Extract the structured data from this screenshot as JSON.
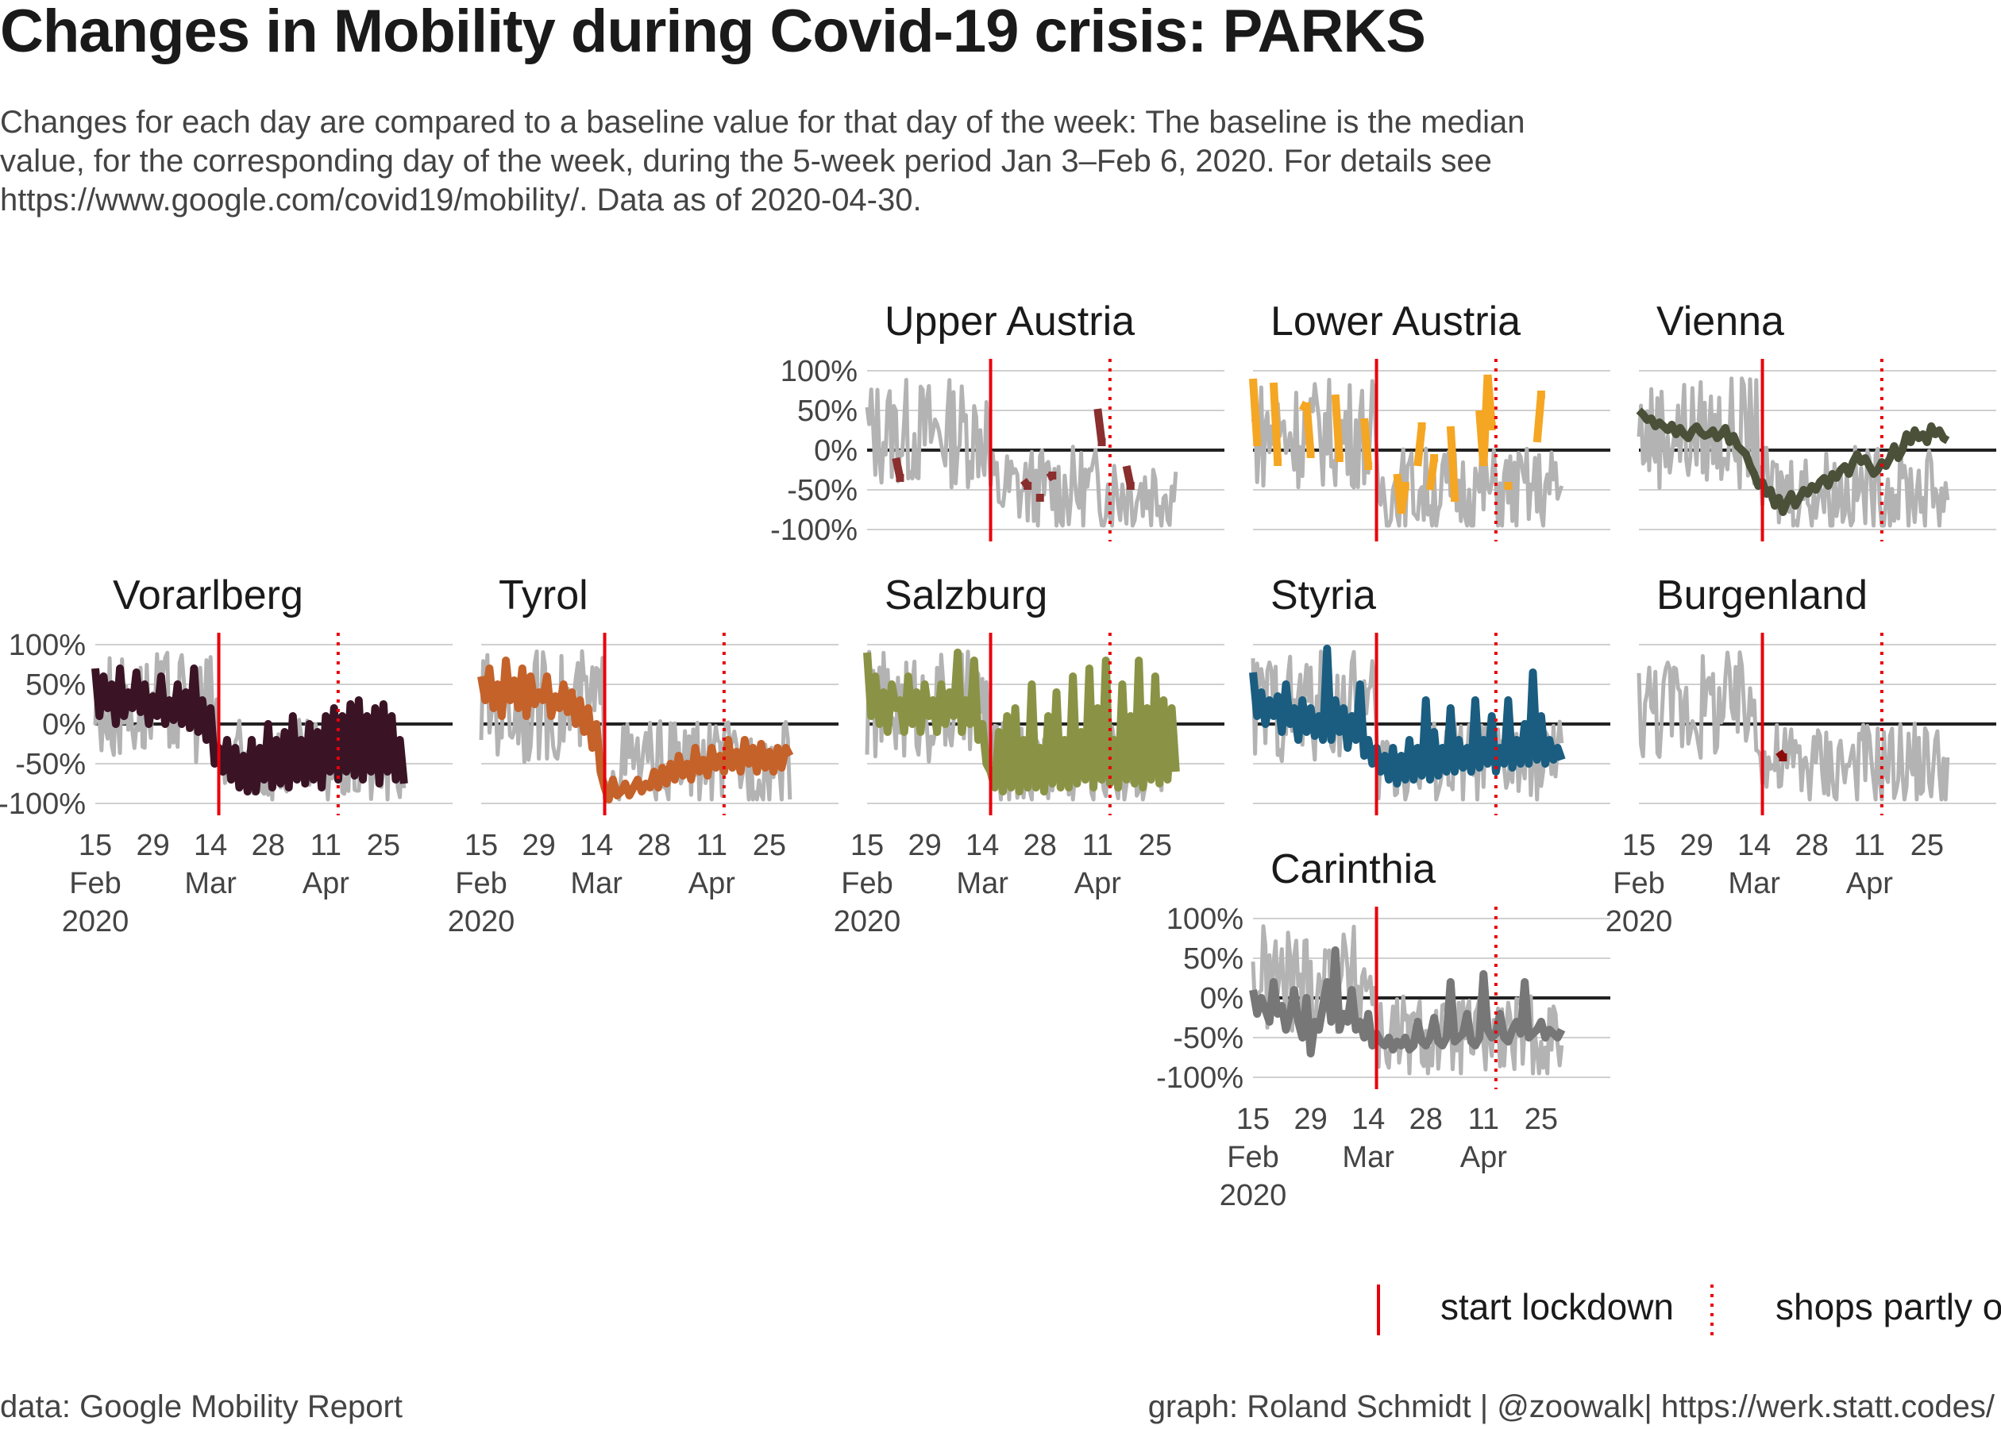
{
  "header": {
    "title": "Changes in Mobility during Covid-19 crisis: PARKS",
    "subtitle": "Changes for each day are compared to a baseline value for that day of the week: The baseline is the median value, for the corresponding day of the week, during the 5-week period Jan 3–Feb 6, 2020. For details see https://www.google.com/covid19/mobility/. Data as of 2020-04-30."
  },
  "legend": {
    "lockdown_label": "start lockdown",
    "shops_label": "shops partly open",
    "lockdown_color": "#e8000b"
  },
  "caption": {
    "left": "data: Google Mobility Report",
    "right": "graph: Roland Schmidt | @zoowalk| https://werk.statt.codes/"
  },
  "chart_data": {
    "type": "line",
    "y_ticks": [
      "100%",
      "50%",
      "0%",
      "-50%",
      "-100%"
    ],
    "ylim": [
      -1.05,
      1.05
    ],
    "x_ticks": [
      {
        "day": 0,
        "label": [
          "15",
          "Feb",
          "2020"
        ]
      },
      {
        "day": 14,
        "label": [
          "29",
          "",
          ""
        ]
      },
      {
        "day": 28,
        "label": [
          "14",
          "Mar",
          ""
        ]
      },
      {
        "day": 42,
        "label": [
          "28",
          "",
          ""
        ]
      },
      {
        "day": 56,
        "label": [
          "11",
          "Apr",
          ""
        ]
      },
      {
        "day": 70,
        "label": [
          "25",
          "",
          ""
        ]
      }
    ],
    "x_range_days": [
      0,
      76
    ],
    "lockdown_day": 30,
    "shops_open_day": 59,
    "background_color": "#b3b3b3",
    "panels": [
      {
        "name": "Upper Austria",
        "color": "#8b2e2e",
        "mode": "sparse",
        "row": 0,
        "col": 2,
        "x_axis": false,
        "y_axis": true,
        "values": [
          0.05,
          0.12,
          -0.1,
          0.2,
          0.0,
          0.3,
          -0.1,
          0.4,
          -0.35,
          0.2,
          0.1,
          0.5,
          0.0,
          0.3,
          null,
          null,
          null,
          null,
          null,
          null,
          null,
          null,
          null,
          null,
          null,
          null,
          null,
          null,
          null,
          null,
          null,
          null,
          null,
          null,
          null,
          null,
          null,
          null,
          -0.38,
          -0.45,
          null,
          null,
          -0.6,
          null,
          -0.35,
          -0.32,
          null,
          null,
          null,
          null,
          null,
          null,
          null,
          null,
          null,
          null,
          0.52,
          0.1,
          null,
          null,
          null,
          null,
          null,
          -0.2,
          -0.45,
          null,
          null,
          null,
          null,
          null,
          null,
          null,
          null,
          null,
          null,
          null
        ],
        "sparse_points": [
          [
            7,
            -0.1
          ],
          [
            8,
            -0.35
          ],
          [
            38,
            -0.38
          ],
          [
            39,
            -0.45
          ],
          [
            42,
            -0.6
          ],
          [
            44,
            -0.35
          ],
          [
            45,
            -0.32
          ],
          [
            56,
            0.52
          ],
          [
            57,
            0.1
          ],
          [
            63,
            -0.2
          ],
          [
            64,
            -0.45
          ]
        ]
      },
      {
        "name": "Lower Austria",
        "color": "#f5a623",
        "mode": "sparse",
        "row": 0,
        "col": 3,
        "x_axis": false,
        "y_axis": false,
        "sparse_points": [
          [
            0,
            0.9
          ],
          [
            1,
            0.1
          ],
          [
            5,
            0.85
          ],
          [
            6,
            -0.15
          ],
          [
            12,
            0.5
          ],
          [
            13,
            0.6
          ],
          [
            14,
            -0.05
          ],
          [
            20,
            0.7
          ],
          [
            21,
            -0.1
          ],
          [
            27,
            0.4
          ],
          [
            28,
            -0.2
          ],
          [
            35,
            -0.3
          ],
          [
            36,
            -0.8
          ],
          [
            37,
            -0.45
          ],
          [
            40,
            -0.2
          ],
          [
            41,
            0.3
          ],
          [
            43,
            -0.5
          ],
          [
            44,
            -0.1
          ],
          [
            48,
            0.3
          ],
          [
            49,
            -0.6
          ],
          [
            55,
            0.5
          ],
          [
            56,
            -0.2
          ],
          [
            57,
            0.95
          ],
          [
            58,
            0.3
          ],
          [
            62,
            -0.45
          ],
          [
            69,
            0.1
          ],
          [
            70,
            0.7
          ]
        ]
      },
      {
        "name": "Vienna",
        "color": "#4b5039",
        "mode": "line",
        "row": 0,
        "col": 4,
        "x_axis": false,
        "y_axis": false,
        "values": [
          0.5,
          0.45,
          0.38,
          0.4,
          0.3,
          0.35,
          0.3,
          0.25,
          0.32,
          0.2,
          0.28,
          0.2,
          0.15,
          0.25,
          0.3,
          0.22,
          0.18,
          0.2,
          0.25,
          0.15,
          0.2,
          0.28,
          0.1,
          0.18,
          0.05,
          0.0,
          -0.05,
          -0.2,
          -0.3,
          -0.45,
          -0.4,
          -0.55,
          -0.5,
          -0.7,
          -0.6,
          -0.78,
          -0.65,
          -0.55,
          -0.7,
          -0.6,
          -0.5,
          -0.55,
          -0.45,
          -0.5,
          -0.4,
          -0.35,
          -0.45,
          -0.3,
          -0.35,
          -0.25,
          -0.2,
          -0.3,
          -0.15,
          -0.05,
          -0.15,
          -0.1,
          -0.2,
          -0.3,
          -0.25,
          -0.15,
          -0.2,
          -0.1,
          0.05,
          -0.1,
          0.0,
          0.2,
          0.1,
          0.25,
          0.15,
          0.2,
          0.1,
          0.3,
          0.2,
          0.25,
          0.15,
          0.12
        ]
      },
      {
        "name": "Vorarlberg",
        "color": "#3a1424",
        "mode": "line",
        "row": 1,
        "col": 0,
        "x_axis": true,
        "y_axis": true,
        "values": [
          0.7,
          0.1,
          0.6,
          0.2,
          0.5,
          0.0,
          0.7,
          0.1,
          0.4,
          0.2,
          0.65,
          0.15,
          0.5,
          0.0,
          0.35,
          0.1,
          0.6,
          0.0,
          0.3,
          0.05,
          0.5,
          0.0,
          0.4,
          -0.05,
          0.7,
          -0.1,
          0.3,
          -0.2,
          0.2,
          -0.5,
          -0.3,
          -0.6,
          -0.2,
          -0.7,
          -0.3,
          -0.8,
          -0.4,
          -0.85,
          -0.2,
          -0.85,
          -0.3,
          -0.7,
          0.0,
          -0.8,
          -0.2,
          -0.75,
          -0.1,
          -0.8,
          0.1,
          -0.7,
          -0.2,
          -0.75,
          0.0,
          -0.7,
          -0.1,
          -0.8,
          0.1,
          -0.6,
          0.2,
          -0.7,
          0.1,
          -0.6,
          0.25,
          -0.65,
          0.3,
          -0.7,
          0.1,
          -0.6,
          0.2,
          -0.75,
          0.25,
          -0.6,
          0.1,
          -0.7,
          -0.2,
          -0.75
        ]
      },
      {
        "name": "Tyrol",
        "color": "#c4622a",
        "mode": "line",
        "row": 1,
        "col": 1,
        "x_axis": true,
        "y_axis": false,
        "values": [
          0.6,
          0.3,
          0.7,
          0.2,
          0.5,
          0.1,
          0.8,
          0.3,
          0.55,
          0.2,
          0.7,
          0.1,
          0.6,
          0.25,
          0.4,
          0.3,
          0.6,
          0.1,
          0.35,
          0.2,
          0.5,
          0.15,
          0.4,
          0.0,
          0.3,
          -0.1,
          0.2,
          -0.3,
          0.0,
          -0.6,
          -0.8,
          -0.95,
          -0.7,
          -0.9,
          -0.85,
          -0.75,
          -0.9,
          -0.8,
          -0.7,
          -0.85,
          -0.75,
          -0.8,
          -0.6,
          -0.8,
          -0.55,
          -0.75,
          -0.5,
          -0.7,
          -0.4,
          -0.65,
          -0.5,
          -0.7,
          -0.3,
          -0.6,
          -0.45,
          -0.65,
          -0.3,
          -0.55,
          -0.4,
          -0.6,
          -0.2,
          -0.55,
          -0.35,
          -0.6,
          -0.2,
          -0.5,
          -0.3,
          -0.6,
          -0.25,
          -0.55,
          -0.35,
          -0.6,
          -0.3,
          -0.55,
          -0.3,
          -0.4
        ]
      },
      {
        "name": "Salzburg",
        "color": "#8a9345",
        "mode": "line",
        "row": 1,
        "col": 2,
        "x_axis": true,
        "y_axis": false,
        "values": [
          0.9,
          0.1,
          0.6,
          0.0,
          0.4,
          -0.1,
          0.5,
          0.2,
          0.3,
          -0.1,
          0.6,
          0.0,
          0.4,
          -0.1,
          0.5,
          0.1,
          0.3,
          -0.1,
          0.5,
          0.0,
          0.4,
          0.1,
          0.9,
          -0.1,
          0.3,
          0.0,
          0.8,
          -0.2,
          0.0,
          -0.5,
          -0.6,
          -0.8,
          -0.1,
          -0.85,
          0.1,
          -0.8,
          0.2,
          -0.85,
          -0.2,
          -0.8,
          0.5,
          -0.8,
          -0.3,
          -0.85,
          0.1,
          -0.75,
          0.4,
          -0.8,
          -0.2,
          -0.8,
          0.6,
          -0.75,
          -0.1,
          -0.7,
          0.7,
          -0.8,
          0.2,
          -0.7,
          0.8,
          -0.75,
          -0.2,
          -0.8,
          0.5,
          -0.7,
          0.1,
          -0.75,
          0.8,
          -0.8,
          0.2,
          -0.7,
          0.6,
          -0.75,
          0.3,
          -0.7,
          0.2,
          -0.6
        ]
      },
      {
        "name": "Styria",
        "color": "#1a5d80",
        "mode": "line",
        "row": 1,
        "col": 3,
        "x_axis": false,
        "y_axis": false,
        "values": [
          0.65,
          0.1,
          0.4,
          0.0,
          0.3,
          0.1,
          0.35,
          -0.1,
          0.5,
          0.0,
          0.2,
          -0.2,
          0.3,
          -0.1,
          0.2,
          -0.15,
          0.1,
          -0.2,
          0.95,
          -0.2,
          0.3,
          -0.1,
          0.2,
          -0.3,
          0.1,
          -0.2,
          0.5,
          -0.4,
          -0.2,
          -0.5,
          -0.3,
          -0.6,
          -0.4,
          -0.7,
          -0.3,
          -0.75,
          -0.4,
          -0.7,
          -0.2,
          -0.7,
          -0.3,
          -0.65,
          0.3,
          -0.7,
          -0.1,
          -0.65,
          -0.3,
          -0.6,
          0.2,
          -0.6,
          -0.2,
          -0.55,
          -0.3,
          -0.6,
          0.3,
          -0.55,
          -0.2,
          -0.5,
          0.1,
          -0.6,
          -0.3,
          -0.5,
          0.3,
          -0.55,
          -0.2,
          -0.5,
          0.0,
          -0.5,
          0.65,
          -0.45,
          0.1,
          -0.5,
          -0.2,
          -0.45,
          -0.3,
          -0.45
        ]
      },
      {
        "name": "Burgenland",
        "color": "#8b0a0a",
        "mode": "sparse",
        "row": 1,
        "col": 4,
        "x_axis": true,
        "y_axis": false,
        "sparse_points": [
          [
            34,
            -0.35
          ],
          [
            35,
            -0.42
          ]
        ]
      },
      {
        "name": "Carinthia",
        "color": "#777777",
        "mode": "line",
        "row": 2,
        "col": 3,
        "x_axis": true,
        "y_axis": true,
        "values": [
          0.1,
          -0.2,
          0.0,
          -0.15,
          -0.3,
          0.2,
          -0.2,
          -0.1,
          -0.4,
          -0.2,
          0.1,
          -0.3,
          -0.5,
          0.0,
          -0.7,
          -0.3,
          -0.4,
          -0.1,
          0.2,
          -0.3,
          0.6,
          -0.4,
          -0.2,
          -0.3,
          0.1,
          -0.4,
          -0.3,
          -0.5,
          -0.2,
          -0.6,
          -0.45,
          -0.55,
          -0.6,
          -0.5,
          -0.65,
          -0.55,
          -0.6,
          -0.5,
          -0.65,
          -0.6,
          -0.3,
          -0.55,
          -0.6,
          -0.5,
          -0.25,
          -0.55,
          -0.6,
          -0.5,
          0.2,
          -0.55,
          -0.5,
          -0.45,
          -0.2,
          -0.55,
          -0.6,
          -0.5,
          0.3,
          -0.4,
          -0.5,
          -0.45,
          -0.2,
          -0.5,
          -0.55,
          -0.4,
          -0.3,
          -0.45,
          0.2,
          -0.5,
          -0.45,
          -0.4,
          -0.3,
          -0.5,
          -0.4,
          -0.45,
          -0.5,
          -0.4
        ]
      }
    ]
  }
}
